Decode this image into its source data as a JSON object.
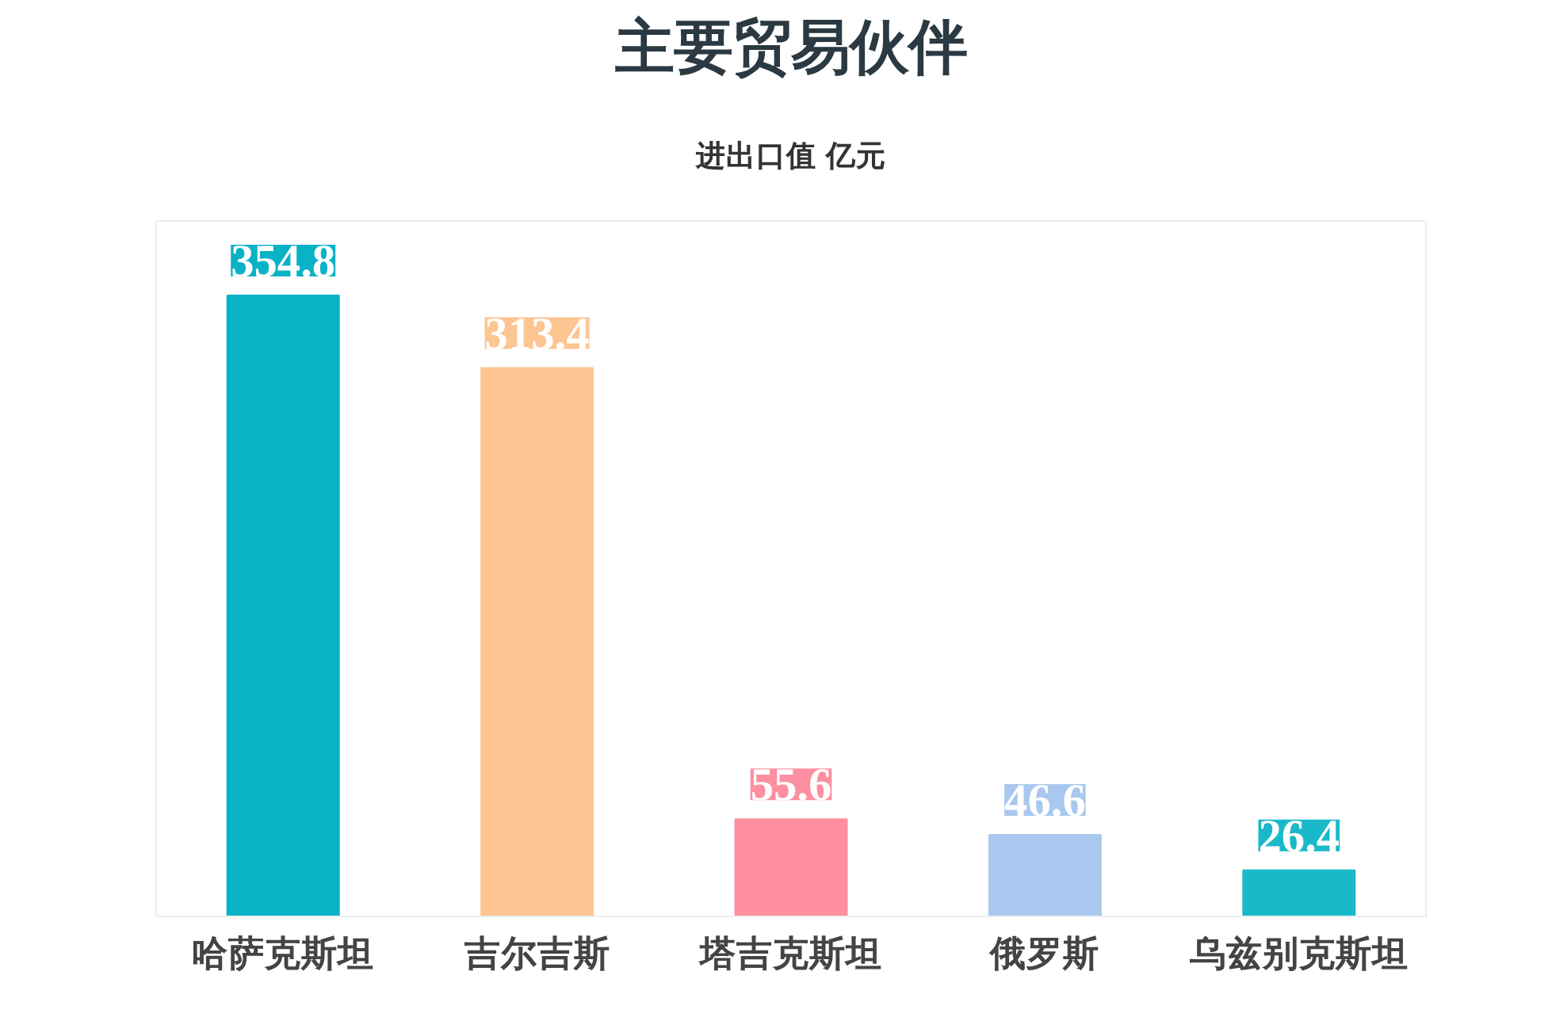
{
  "chart_data": {
    "type": "bar",
    "title": "主要贸易伙伴",
    "subtitle": "进出口值 亿元",
    "categories": [
      "哈萨克斯坦",
      "吉尔吉斯",
      "塔吉克斯坦",
      "俄罗斯",
      "乌兹别克斯坦"
    ],
    "values": [
      354.8,
      313.4,
      55.6,
      46.6,
      26.4
    ],
    "colors": [
      "#0ab2c6",
      "#fcc592",
      "#fd8fa0",
      "#a9c8ef",
      "#19b9c9"
    ],
    "data_labels": true
  }
}
